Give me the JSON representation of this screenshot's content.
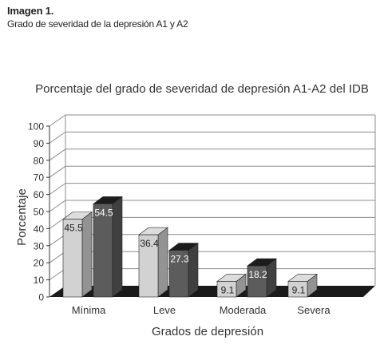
{
  "figure": {
    "label": "Imagen 1.",
    "caption": "Grado de severidad de la depresión A1 y A2"
  },
  "colors": {
    "series_a1": "#d2d2d2",
    "series_a2": "#5c5c5c",
    "floor": "#1a1a1a",
    "grid": "#8c8c8c"
  },
  "chart_data": {
    "type": "bar",
    "title": "Porcentaje del grado de severidad de depresión A1-A2 del IDB",
    "xlabel": "Grados de depresión",
    "ylabel": "Porcentaje",
    "ylim": [
      0,
      100
    ],
    "yticks": [
      0,
      10,
      20,
      30,
      40,
      50,
      60,
      70,
      80,
      90,
      100
    ],
    "categories": [
      "Mínima",
      "Leve",
      "Moderada",
      "Severa"
    ],
    "series": [
      {
        "values": [
          45.5,
          36.4,
          9.1,
          9.1
        ]
      },
      {
        "values": [
          54.5,
          27.3,
          18.2,
          null
        ]
      }
    ],
    "grid": true,
    "legend": "none"
  }
}
